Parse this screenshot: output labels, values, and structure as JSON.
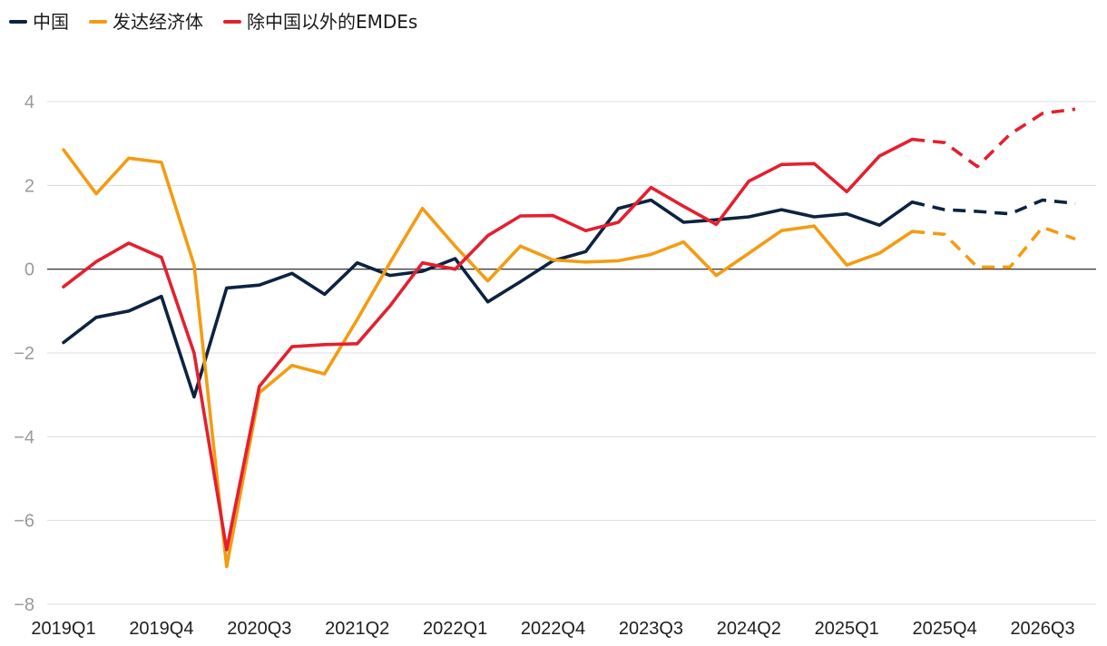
{
  "chart_data": {
    "type": "line",
    "title": "",
    "xlabel": "",
    "ylabel": "",
    "ylim": [
      -8,
      4
    ],
    "yticks": [
      4,
      2,
      0,
      -2,
      -4,
      -6,
      -8
    ],
    "ytick_labels": [
      "4",
      "2",
      "0",
      "−2",
      "−4",
      "−6",
      "−8"
    ],
    "grid": true,
    "legend_position": "top-left",
    "categories": [
      "2019Q1",
      "2019Q2",
      "2019Q3",
      "2019Q4",
      "2020Q1",
      "2020Q2",
      "2020Q3",
      "2020Q4",
      "2021Q1",
      "2021Q2",
      "2021Q3",
      "2021Q4",
      "2022Q1",
      "2022Q2",
      "2022Q3",
      "2022Q4",
      "2023Q1",
      "2023Q2",
      "2023Q3",
      "2023Q4",
      "2024Q1",
      "2024Q2",
      "2024Q3",
      "2024Q4",
      "2025Q1",
      "2025Q2",
      "2025Q3",
      "2025Q4",
      "2026Q1",
      "2026Q2",
      "2026Q3",
      "2026Q4"
    ],
    "xtick_labels": [
      "2019Q1",
      "2019Q4",
      "2020Q3",
      "2021Q2",
      "2022Q1",
      "2022Q4",
      "2023Q3",
      "2024Q2",
      "2025Q1",
      "2025Q4",
      "2026Q3"
    ],
    "forecast_start_index": 27,
    "series": [
      {
        "name": "中国",
        "color": "#0c2340",
        "values": [
          -1.75,
          -1.15,
          -1.0,
          -0.65,
          -3.05,
          -0.45,
          -0.38,
          -0.1,
          -0.6,
          0.15,
          -0.15,
          -0.05,
          0.25,
          -0.78,
          -0.3,
          0.2,
          0.42,
          1.45,
          1.65,
          1.12,
          1.18,
          1.25,
          1.42,
          1.25,
          1.32,
          1.05,
          1.6,
          1.42,
          1.38,
          1.32,
          1.65,
          1.57
        ]
      },
      {
        "name": "发达经济体",
        "color": "#f39c12",
        "values": [
          2.85,
          1.8,
          2.65,
          2.55,
          0.1,
          -7.1,
          -2.95,
          -2.3,
          -2.5,
          -1.2,
          0.15,
          1.45,
          0.55,
          -0.28,
          0.55,
          0.22,
          0.17,
          0.2,
          0.35,
          0.65,
          -0.15,
          0.38,
          0.92,
          1.03,
          0.1,
          0.38,
          0.9,
          0.83,
          0.05,
          0.05,
          1.0,
          0.72
        ]
      },
      {
        "name": "除中国以外的EMDEs",
        "color": "#e3202f",
        "values": [
          -0.42,
          0.18,
          0.62,
          0.28,
          -2.0,
          -6.7,
          -2.8,
          -1.85,
          -1.8,
          -1.78,
          -0.88,
          0.15,
          0.0,
          0.8,
          1.27,
          1.28,
          0.92,
          1.12,
          1.95,
          1.5,
          1.07,
          2.1,
          2.5,
          2.52,
          1.85,
          2.7,
          3.1,
          3.02,
          2.45,
          3.22,
          3.72,
          3.82
        ]
      }
    ]
  }
}
